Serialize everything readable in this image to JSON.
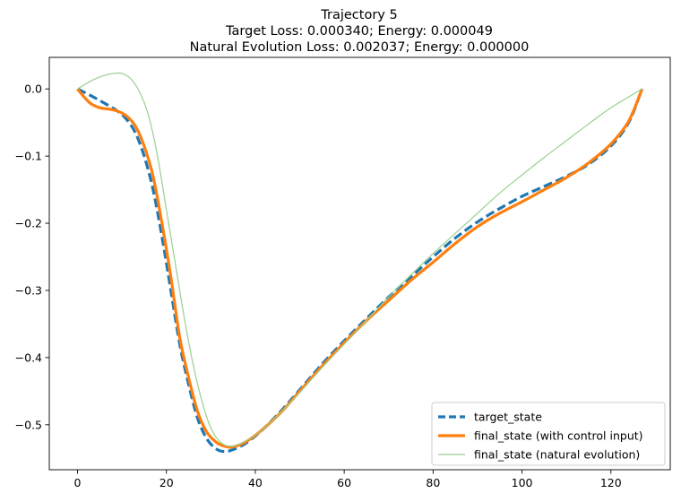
{
  "chart_data": {
    "type": "line",
    "title_lines": [
      "Trajectory 5",
      "Target Loss: 0.000340; Energy: 0.000049",
      "Natural Evolution Loss: 0.002037; Energy: 0.000000"
    ],
    "xlabel": "",
    "ylabel": "",
    "xlim": [
      -6.35,
      133.35
    ],
    "ylim": [
      -0.567,
      0.047
    ],
    "xticks": [
      0,
      20,
      40,
      60,
      80,
      100,
      120
    ],
    "yticks": [
      0.0,
      -0.1,
      -0.2,
      -0.3,
      -0.4,
      -0.5
    ],
    "ytick_labels": [
      "0.0",
      "−0.1",
      "−0.2",
      "−0.3",
      "−0.4",
      "−0.5"
    ],
    "grid": false,
    "legend_position": "lower right",
    "series": [
      {
        "name": "target_state",
        "color": "#1f77b4",
        "style": "dashed",
        "points": [
          [
            0,
            0.0
          ],
          [
            3,
            -0.01
          ],
          [
            6,
            -0.021
          ],
          [
            9,
            -0.033
          ],
          [
            11,
            -0.045
          ],
          [
            13,
            -0.065
          ],
          [
            15,
            -0.1
          ],
          [
            17,
            -0.15
          ],
          [
            19,
            -0.22
          ],
          [
            21,
            -0.3
          ],
          [
            23,
            -0.38
          ],
          [
            25,
            -0.44
          ],
          [
            27,
            -0.49
          ],
          [
            29,
            -0.52
          ],
          [
            31,
            -0.535
          ],
          [
            33,
            -0.54
          ],
          [
            35,
            -0.537
          ],
          [
            38,
            -0.527
          ],
          [
            42,
            -0.505
          ],
          [
            46,
            -0.478
          ],
          [
            50,
            -0.448
          ],
          [
            55,
            -0.41
          ],
          [
            60,
            -0.375
          ],
          [
            65,
            -0.342
          ],
          [
            70,
            -0.31
          ],
          [
            75,
            -0.28
          ],
          [
            80,
            -0.25
          ],
          [
            85,
            -0.222
          ],
          [
            90,
            -0.198
          ],
          [
            95,
            -0.178
          ],
          [
            100,
            -0.16
          ],
          [
            105,
            -0.145
          ],
          [
            110,
            -0.13
          ],
          [
            115,
            -0.112
          ],
          [
            120,
            -0.085
          ],
          [
            124,
            -0.05
          ],
          [
            127,
            0.0
          ]
        ]
      },
      {
        "name": "final_state (with control input)",
        "color": "#ff7f0e",
        "style": "solid",
        "points": [
          [
            0,
            0.0
          ],
          [
            1.5,
            -0.012
          ],
          [
            3,
            -0.022
          ],
          [
            5,
            -0.028
          ],
          [
            7,
            -0.03
          ],
          [
            9,
            -0.033
          ],
          [
            11,
            -0.04
          ],
          [
            13,
            -0.055
          ],
          [
            15,
            -0.085
          ],
          [
            17,
            -0.13
          ],
          [
            19,
            -0.2
          ],
          [
            21,
            -0.28
          ],
          [
            23,
            -0.37
          ],
          [
            25,
            -0.43
          ],
          [
            27,
            -0.48
          ],
          [
            29,
            -0.51
          ],
          [
            31,
            -0.525
          ],
          [
            33,
            -0.532
          ],
          [
            35,
            -0.533
          ],
          [
            38,
            -0.525
          ],
          [
            42,
            -0.505
          ],
          [
            46,
            -0.48
          ],
          [
            50,
            -0.45
          ],
          [
            55,
            -0.413
          ],
          [
            60,
            -0.378
          ],
          [
            65,
            -0.345
          ],
          [
            70,
            -0.315
          ],
          [
            75,
            -0.285
          ],
          [
            80,
            -0.258
          ],
          [
            85,
            -0.23
          ],
          [
            90,
            -0.205
          ],
          [
            95,
            -0.185
          ],
          [
            100,
            -0.168
          ],
          [
            105,
            -0.15
          ],
          [
            110,
            -0.132
          ],
          [
            115,
            -0.11
          ],
          [
            120,
            -0.082
          ],
          [
            124,
            -0.048
          ],
          [
            127,
            0.0
          ]
        ]
      },
      {
        "name": "final_state (natural evolution)",
        "color": "#98d08e",
        "style": "thin",
        "points": [
          [
            0,
            0.0
          ],
          [
            2,
            0.008
          ],
          [
            4,
            0.015
          ],
          [
            6,
            0.02
          ],
          [
            8,
            0.023
          ],
          [
            10,
            0.023
          ],
          [
            12,
            0.015
          ],
          [
            14,
            -0.005
          ],
          [
            16,
            -0.04
          ],
          [
            18,
            -0.1
          ],
          [
            20,
            -0.18
          ],
          [
            22,
            -0.26
          ],
          [
            24,
            -0.34
          ],
          [
            26,
            -0.41
          ],
          [
            28,
            -0.465
          ],
          [
            30,
            -0.505
          ],
          [
            32,
            -0.525
          ],
          [
            34,
            -0.532
          ],
          [
            36,
            -0.53
          ],
          [
            39,
            -0.52
          ],
          [
            42,
            -0.505
          ],
          [
            46,
            -0.48
          ],
          [
            50,
            -0.452
          ],
          [
            55,
            -0.415
          ],
          [
            60,
            -0.38
          ],
          [
            65,
            -0.345
          ],
          [
            70,
            -0.31
          ],
          [
            75,
            -0.277
          ],
          [
            80,
            -0.245
          ],
          [
            85,
            -0.215
          ],
          [
            90,
            -0.185
          ],
          [
            95,
            -0.155
          ],
          [
            100,
            -0.128
          ],
          [
            105,
            -0.102
          ],
          [
            110,
            -0.077
          ],
          [
            115,
            -0.052
          ],
          [
            120,
            -0.028
          ],
          [
            127,
            0.0
          ]
        ]
      }
    ]
  }
}
